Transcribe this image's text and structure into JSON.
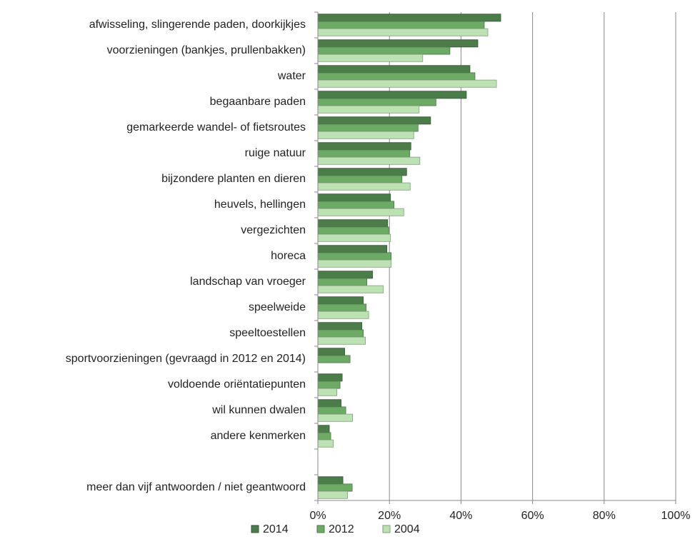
{
  "chart_data": {
    "type": "bar",
    "orientation": "horizontal",
    "categories": [
      "afwisseling, slingerende paden, doorkijkjes",
      "voorzieningen (bankjes, prullenbakken)",
      "water",
      "begaanbare paden",
      "gemarkeerde wandel- of fietsroutes",
      "ruige natuur",
      "bijzondere planten en dieren",
      "heuvels, hellingen",
      "vergezichten",
      "horeca",
      "landschap van vroeger",
      "speelweide",
      "speeltoestellen",
      "sportvoorzieningen (gevraagd in 2012 en 2014)",
      "voldoende oriëntatiepunten",
      "wil kunnen dwalen",
      "andere kenmerken",
      null,
      "meer dan vijf antwoorden / niet geantwoord"
    ],
    "series": [
      {
        "name": "2014",
        "color": "#4d7c4b",
        "values": [
          51.1,
          44.7,
          42.5,
          41.5,
          31.5,
          26,
          24.8,
          20.3,
          19.5,
          19.3,
          15.3,
          12.7,
          12.3,
          7.5,
          6.8,
          6.5,
          3.2,
          null,
          7
        ]
      },
      {
        "name": "2012",
        "color": "#6caa66",
        "values": [
          46.5,
          36.9,
          43.9,
          33,
          28,
          25.7,
          23.5,
          21.3,
          19.8,
          20.5,
          13.7,
          13.5,
          12.7,
          9,
          6.2,
          7.8,
          3.6,
          null,
          9.6
        ]
      },
      {
        "name": "2004",
        "color": "#bce2b4",
        "values": [
          47.5,
          29.3,
          49.9,
          28.3,
          26.8,
          28.5,
          25.8,
          24,
          20.3,
          20.5,
          18.3,
          14.2,
          13.3,
          null,
          5.3,
          9.7,
          4.3,
          null,
          8.3
        ]
      }
    ],
    "xlim": [
      0,
      100
    ],
    "xticks": [
      {
        "value": 0,
        "label": "0%"
      },
      {
        "value": 20,
        "label": "20%"
      },
      {
        "value": 40,
        "label": "40%"
      },
      {
        "value": 60,
        "label": "60%"
      },
      {
        "value": 80,
        "label": "80%"
      },
      {
        "value": 100,
        "label": "100%"
      }
    ],
    "grid": true,
    "legend": "bottom"
  }
}
